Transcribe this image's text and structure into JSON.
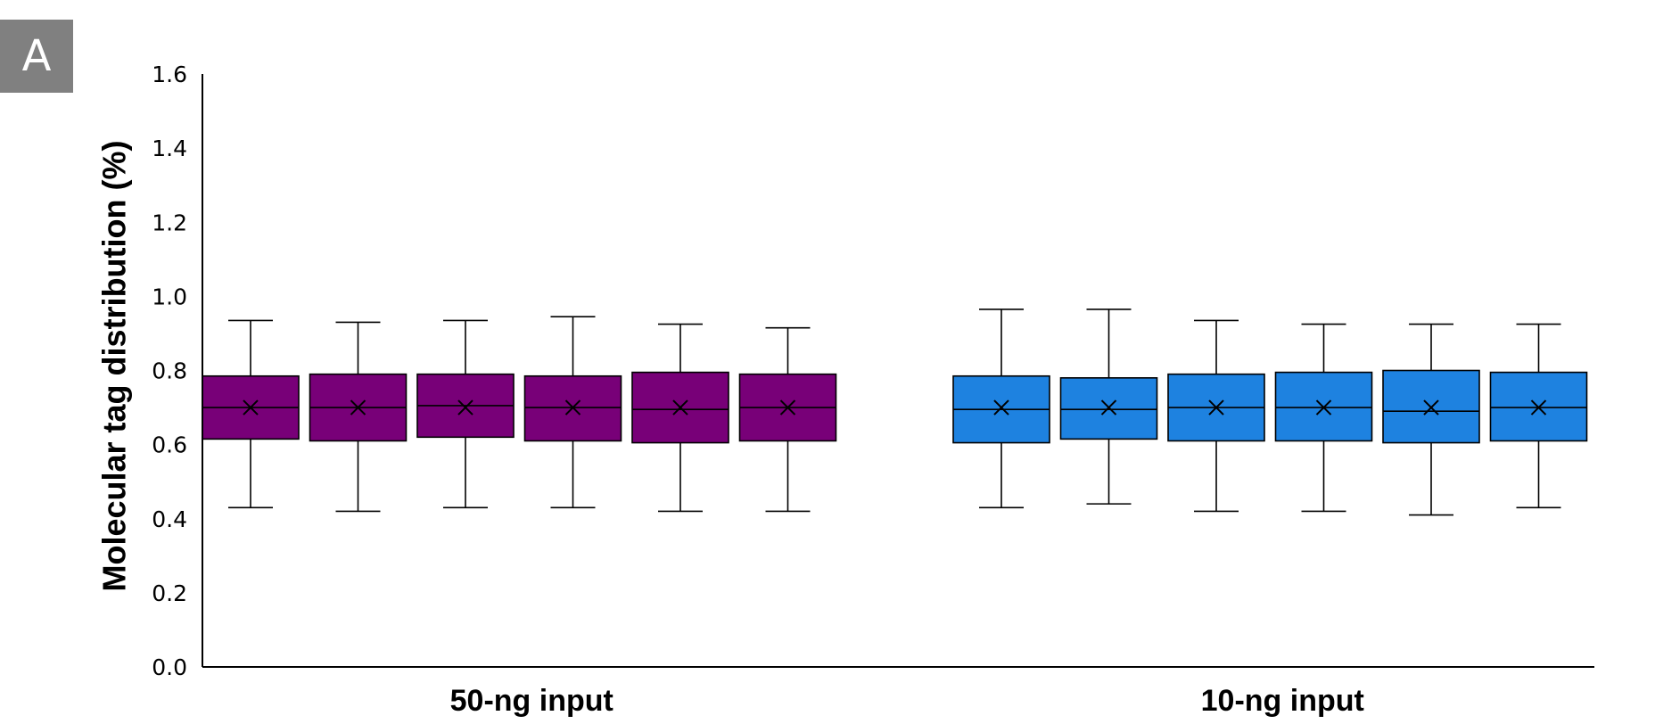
{
  "panel_label": "A",
  "chart_data": {
    "type": "box",
    "title": "",
    "ylabel": "Molecular tag distribution (%)",
    "ylim": [
      0,
      1.6
    ],
    "yticks": [
      "0.0",
      "0.2",
      "0.4",
      "0.6",
      "0.8",
      "1.0",
      "1.2",
      "1.4",
      "1.6"
    ],
    "grid": false,
    "legend": "none",
    "colors": {
      "group_50ng": "#780078",
      "group_10ng": "#1e82e0",
      "stroke": "#000000"
    },
    "groups": [
      {
        "label": "50-ng input",
        "color_key": "group_50ng",
        "boxes": [
          {
            "min": 0.43,
            "q1": 0.615,
            "median": 0.7,
            "mean": 0.7,
            "q3": 0.785,
            "max": 0.935
          },
          {
            "min": 0.42,
            "q1": 0.61,
            "median": 0.7,
            "mean": 0.7,
            "q3": 0.79,
            "max": 0.93
          },
          {
            "min": 0.43,
            "q1": 0.62,
            "median": 0.705,
            "mean": 0.7,
            "q3": 0.79,
            "max": 0.935
          },
          {
            "min": 0.43,
            "q1": 0.61,
            "median": 0.7,
            "mean": 0.7,
            "q3": 0.785,
            "max": 0.945
          },
          {
            "min": 0.42,
            "q1": 0.605,
            "median": 0.695,
            "mean": 0.7,
            "q3": 0.795,
            "max": 0.925
          },
          {
            "min": 0.42,
            "q1": 0.61,
            "median": 0.7,
            "mean": 0.7,
            "q3": 0.79,
            "max": 0.915
          }
        ]
      },
      {
        "label": "10-ng input",
        "color_key": "group_10ng",
        "boxes": [
          {
            "min": 0.43,
            "q1": 0.605,
            "median": 0.695,
            "mean": 0.7,
            "q3": 0.785,
            "max": 0.965
          },
          {
            "min": 0.44,
            "q1": 0.615,
            "median": 0.695,
            "mean": 0.7,
            "q3": 0.78,
            "max": 0.965
          },
          {
            "min": 0.42,
            "q1": 0.61,
            "median": 0.7,
            "mean": 0.7,
            "q3": 0.79,
            "max": 0.935
          },
          {
            "min": 0.42,
            "q1": 0.61,
            "median": 0.7,
            "mean": 0.7,
            "q3": 0.795,
            "max": 0.925
          },
          {
            "min": 0.41,
            "q1": 0.605,
            "median": 0.69,
            "mean": 0.7,
            "q3": 0.8,
            "max": 0.925
          },
          {
            "min": 0.43,
            "q1": 0.61,
            "median": 0.7,
            "mean": 0.7,
            "q3": 0.795,
            "max": 0.925
          }
        ]
      }
    ]
  }
}
